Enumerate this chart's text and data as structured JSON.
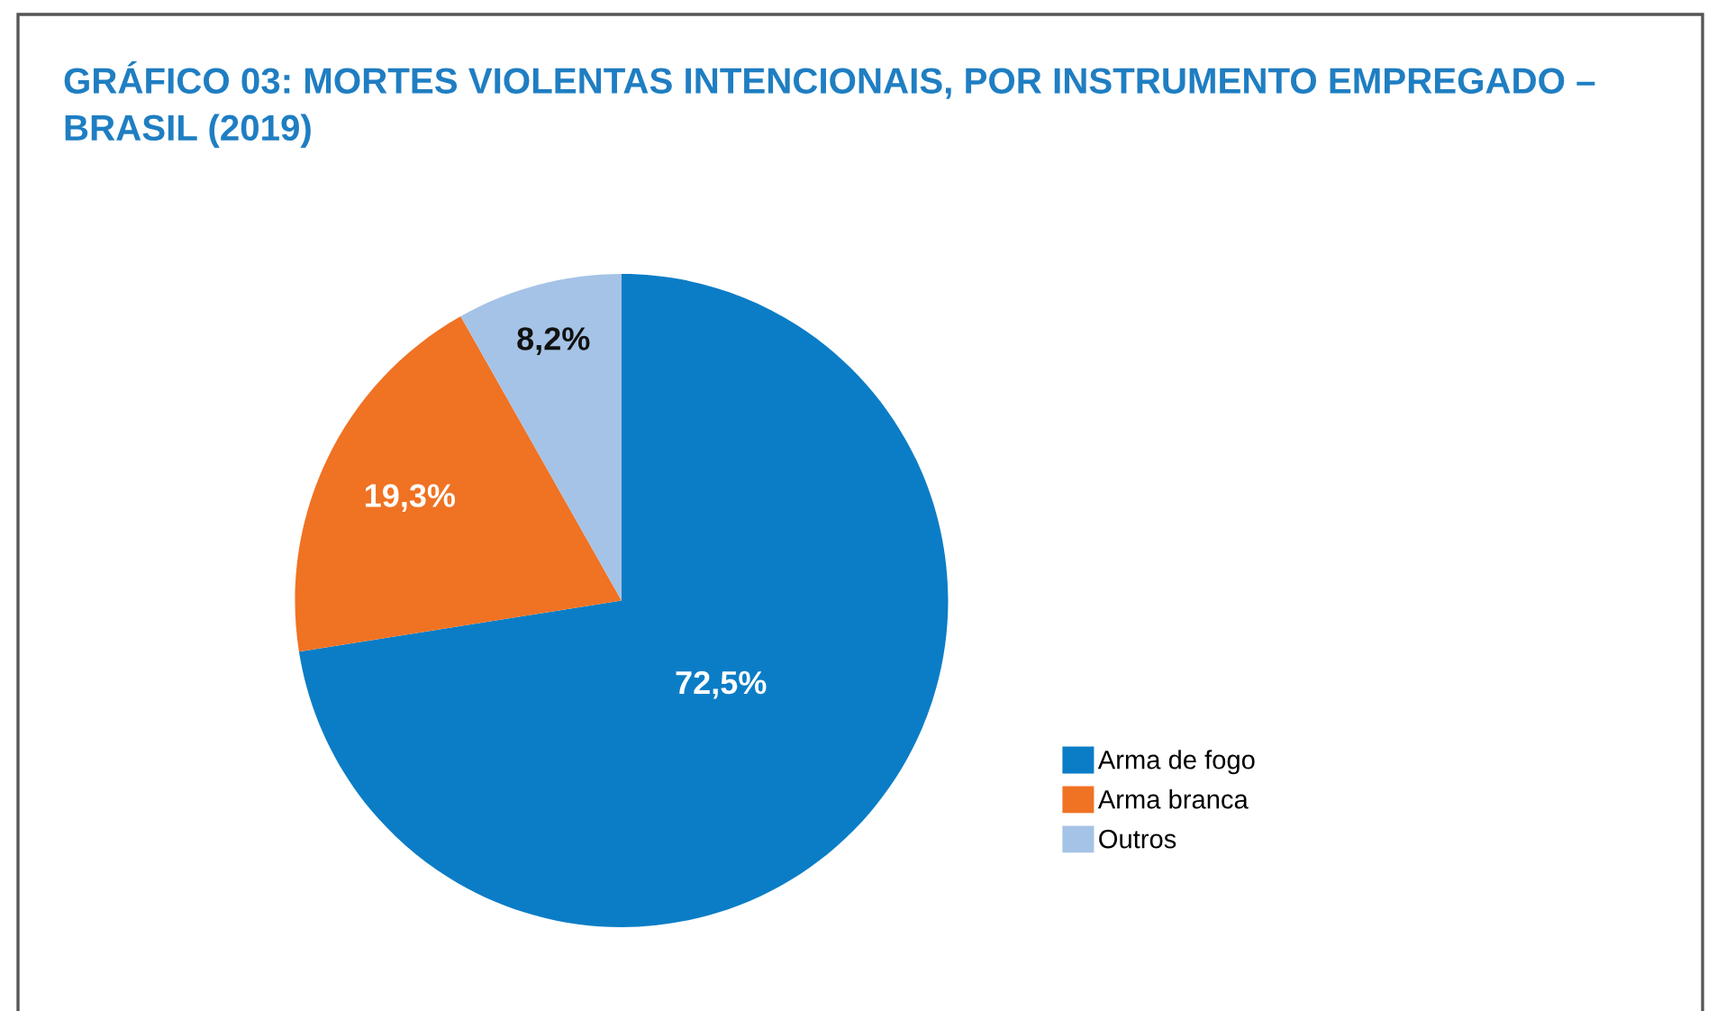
{
  "chart_data": {
    "type": "pie",
    "title": "GRÁFICO 03: MORTES VIOLENTAS INTENCIONAIS, POR INSTRUMENTO EMPREGADO – BRASIL (2019)",
    "categories": [
      "Arma de fogo",
      "Arma branca",
      "Outros"
    ],
    "values": [
      72.5,
      19.3,
      8.2
    ],
    "colors": [
      "#0b7dc6",
      "#f07223",
      "#a5c3e6"
    ],
    "value_labels": [
      "72,5%",
      "19,3%",
      "8,2%"
    ],
    "legend": "right"
  }
}
